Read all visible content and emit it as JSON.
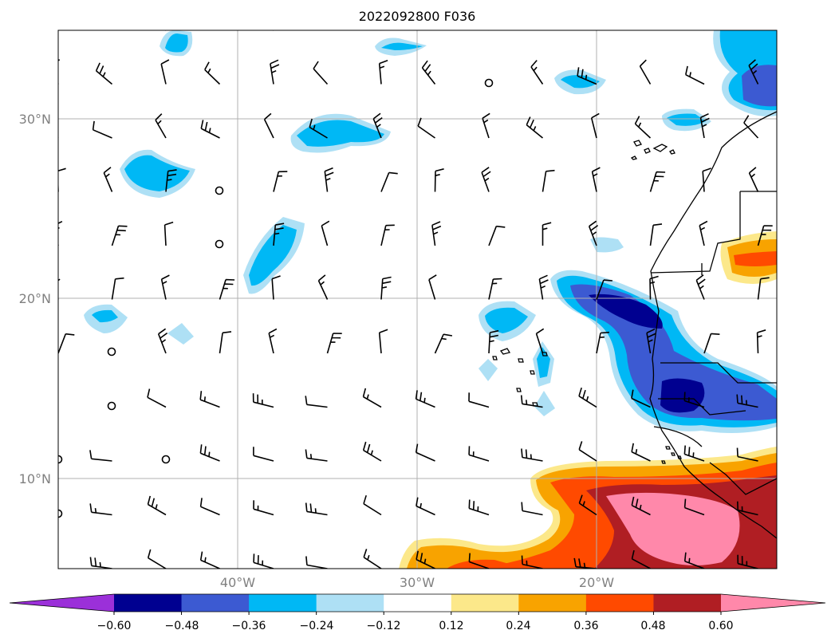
{
  "title": "2022092800 F036",
  "map": {
    "lon_labels": [
      "40°W",
      "30°W",
      "20°W"
    ],
    "lat_labels": [
      "30°N",
      "20°N",
      "10°N"
    ],
    "extent": {
      "lon_min": -50,
      "lon_max": -10,
      "lat_min": 5,
      "lat_max": 35
    },
    "gridlines": true,
    "overlay": "wind barbs"
  },
  "colorbar": {
    "ticks": [
      "−0.60",
      "−0.48",
      "−0.36",
      "−0.24",
      "−0.12",
      "0.12",
      "0.24",
      "0.36",
      "0.48",
      "0.60"
    ],
    "colors": [
      "#9b30d9",
      "#000090",
      "#3c5ad2",
      "#00b8f5",
      "#aee0f5",
      "#ffffff",
      "#fce88a",
      "#f8a300",
      "#ff4a00",
      "#b01e23",
      "#ff88aa"
    ],
    "extend": "both"
  },
  "colors": {
    "dark_blue": "#000090",
    "mid_blue": "#3c5ad2",
    "cyan": "#00b8f5",
    "light_blue": "#aee0f5",
    "yellow": "#fce88a",
    "orange": "#f8a300",
    "red_orange": "#ff4a00",
    "dark_red": "#b01e23",
    "pink": "#ff88aa"
  }
}
